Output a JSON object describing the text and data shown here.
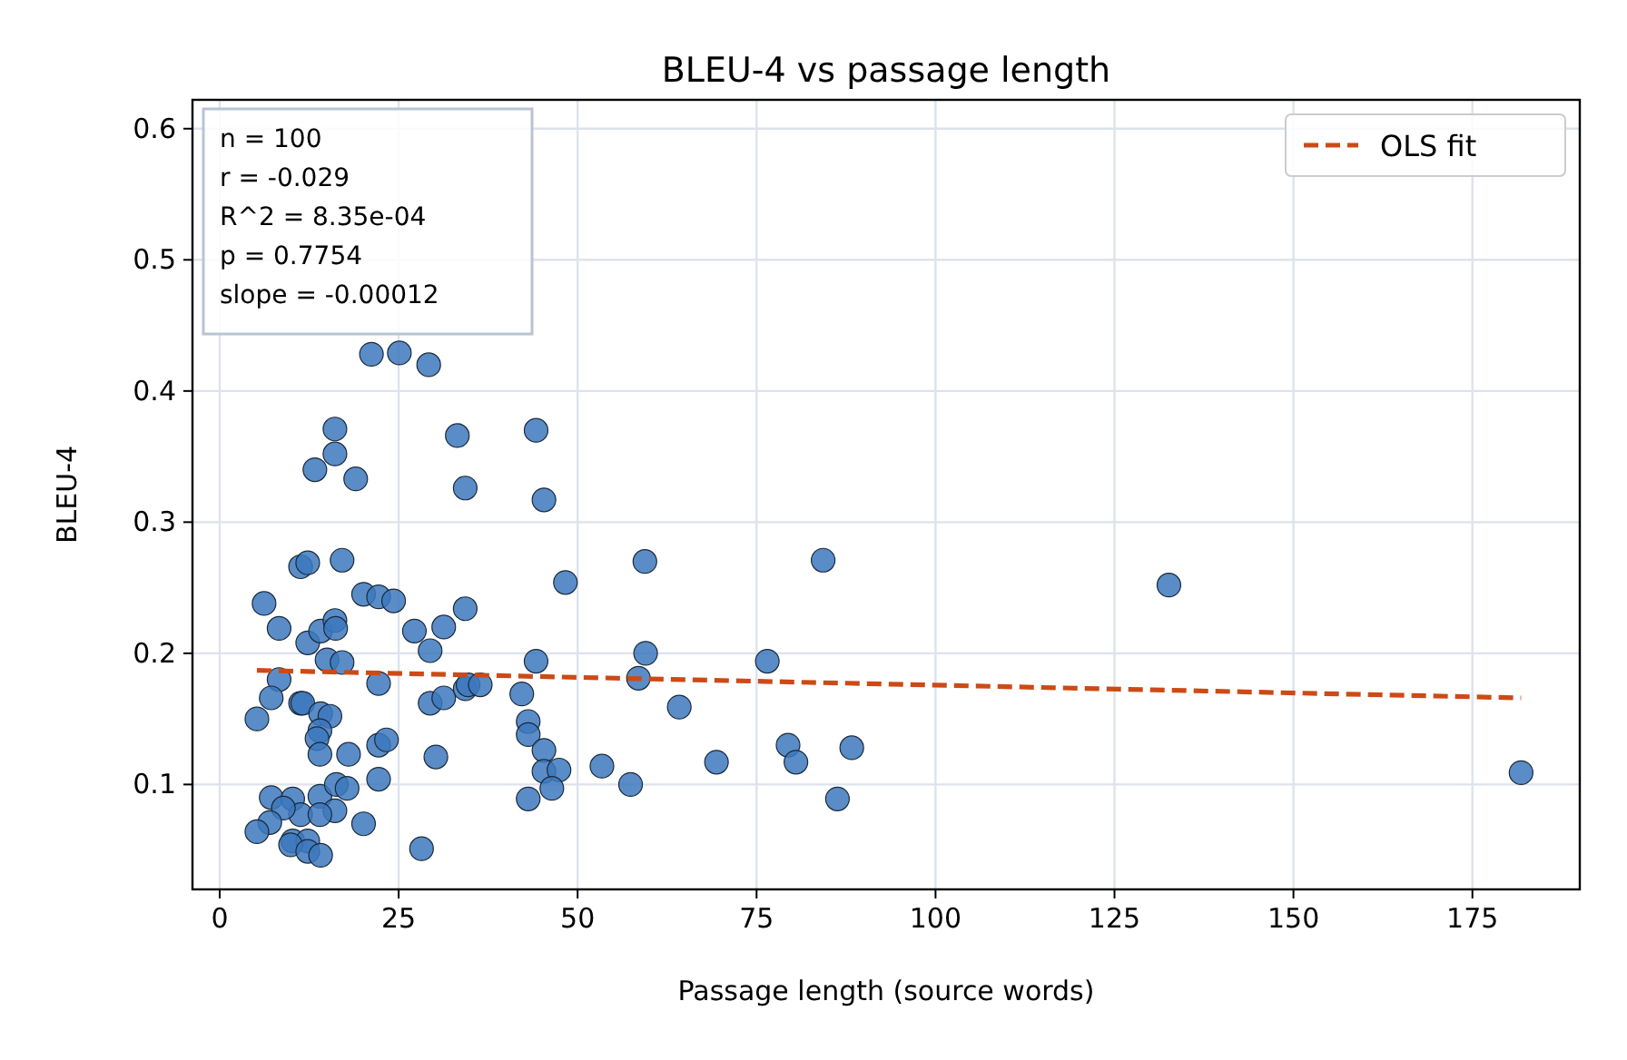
{
  "chart_data": {
    "type": "scatter",
    "title": "BLEU-4 vs passage length",
    "xlabel": "Passage length (source words)",
    "ylabel": "BLEU-4",
    "xlim": [
      -3.8,
      190
    ],
    "ylim": [
      0.02,
      0.622
    ],
    "xticks": [
      0,
      25,
      50,
      75,
      100,
      125,
      150,
      175
    ],
    "yticks": [
      0.1,
      0.2,
      0.3,
      0.4,
      0.5,
      0.6
    ],
    "grid": true,
    "legend": "top right",
    "annotations": [
      "n = 100",
      "r = -0.029",
      "R^2 = 8.35e-04",
      "p = 0.7754",
      "slope = -0.00012"
    ],
    "series": [
      {
        "color": "#3d78bd",
        "marker": "circle",
        "x": [
          21.2,
          25.1,
          29.2,
          16.1,
          16.1,
          13.3,
          19,
          33.2,
          44.2,
          34.3,
          45.3,
          11.3,
          12.3,
          17.1,
          59.4,
          48.3,
          6.2,
          20.1,
          22.2,
          24.3,
          34.3,
          8.3,
          12.3,
          14.1,
          16.1,
          16.2,
          27.2,
          31.3,
          29.4,
          15,
          17.1,
          44.2,
          59.5,
          58.5,
          8.3,
          7.2,
          22.2,
          11.3,
          11.6,
          14.1,
          15.4,
          5.2,
          29.4,
          31.3,
          34.3,
          34.7,
          36.4,
          42.2,
          14,
          13.6,
          43.1,
          43.1,
          45.3,
          14,
          18,
          22.2,
          23.3,
          30.2,
          45.3,
          47.4,
          53.4,
          57.4,
          46.4,
          43.1,
          22.2,
          7.2,
          10.2,
          14,
          16.3,
          17.8,
          16.1,
          11.3,
          8.9,
          14,
          7,
          5.2,
          20.1,
          10.2,
          12.3,
          9.9,
          12.3,
          14.1,
          28.2,
          84.3,
          76.5,
          64.2,
          69.4,
          79.4,
          80.5,
          88.3,
          86.3,
          132.6,
          181.8
        ],
        "values": [
          0.428,
          0.429,
          0.42,
          0.371,
          0.352,
          0.34,
          0.333,
          0.366,
          0.37,
          0.326,
          0.317,
          0.266,
          0.269,
          0.271,
          0.27,
          0.254,
          0.238,
          0.245,
          0.243,
          0.24,
          0.234,
          0.219,
          0.208,
          0.217,
          0.225,
          0.219,
          0.217,
          0.22,
          0.202,
          0.195,
          0.193,
          0.194,
          0.2,
          0.181,
          0.18,
          0.166,
          0.177,
          0.162,
          0.162,
          0.154,
          0.152,
          0.15,
          0.162,
          0.166,
          0.173,
          0.176,
          0.176,
          0.169,
          0.141,
          0.135,
          0.148,
          0.138,
          0.126,
          0.123,
          0.123,
          0.13,
          0.134,
          0.121,
          0.11,
          0.111,
          0.114,
          0.1,
          0.097,
          0.089,
          0.104,
          0.09,
          0.089,
          0.091,
          0.1,
          0.097,
          0.08,
          0.077,
          0.082,
          0.077,
          0.071,
          0.064,
          0.07,
          0.057,
          0.057,
          0.054,
          0.049,
          0.046,
          0.051,
          0.271,
          0.194,
          0.159,
          0.117,
          0.13,
          0.117,
          0.128,
          0.089,
          0.252,
          0.109
        ]
      },
      {
        "type": "line",
        "name": "OLS fit",
        "color": "#cc4a16",
        "line_style": "dashed",
        "x": [
          5.2,
          181.8
        ],
        "values": [
          0.187,
          0.166
        ]
      }
    ]
  }
}
